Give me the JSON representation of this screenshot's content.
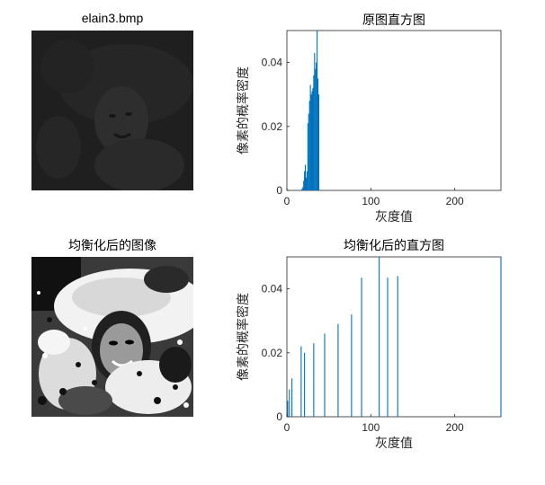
{
  "figure": {
    "panel_titles": [
      "elain3.bmp",
      "原图直方图",
      "均衡化后的图像",
      "均衡化后的直方图"
    ]
  },
  "colors": {
    "bar": "#0072bd",
    "axis": "#262626",
    "dark_image": "#1f1f1f"
  },
  "chart_data": [
    {
      "type": "bar",
      "title": "原图直方图",
      "xlabel": "灰度值",
      "ylabel": "像素的概率密度",
      "xlim": [
        0,
        255
      ],
      "ylim": [
        0,
        0.05
      ],
      "xticks": [
        "0",
        "100",
        "200"
      ],
      "yticks": [
        "0",
        "0.02",
        "0.04"
      ],
      "x": [
        18,
        19,
        20,
        21,
        22,
        23,
        24,
        25,
        26,
        27,
        28,
        29,
        30,
        31,
        32,
        33,
        34,
        35,
        36,
        37,
        38
      ],
      "values": [
        0.0005,
        0.001,
        0.003,
        0.006,
        0.008,
        0.004,
        0.006,
        0.021,
        0.024,
        0.028,
        0.033,
        0.03,
        0.031,
        0.032,
        0.036,
        0.043,
        0.038,
        0.04,
        0.05,
        0.035,
        0.03
      ]
    },
    {
      "type": "bar",
      "title": "均衡化后的直方图",
      "xlabel": "灰度值",
      "ylabel": "像素的概率密度",
      "xlim": [
        0,
        255
      ],
      "ylim": [
        0,
        0.05
      ],
      "xticks": [
        "0",
        "100",
        "200"
      ],
      "yticks": [
        "0",
        "0.02",
        "0.04"
      ],
      "x": [
        1,
        3,
        6,
        17,
        21,
        32,
        45,
        61,
        77,
        89,
        110,
        120,
        132,
        255
      ],
      "values": [
        0.005,
        0.0085,
        0.012,
        0.022,
        0.02,
        0.023,
        0.026,
        0.029,
        0.032,
        0.0435,
        0.05,
        0.0435,
        0.044,
        0.05
      ]
    }
  ]
}
